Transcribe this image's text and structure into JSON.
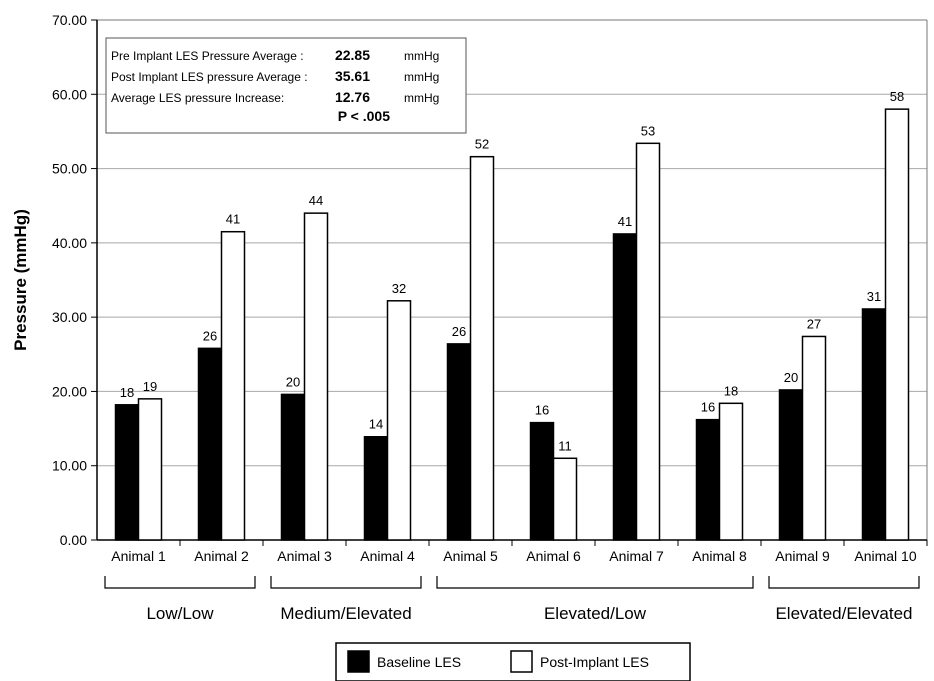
{
  "chart_data": {
    "type": "bar",
    "ylabel": "Pressure (mmHg)",
    "ylim": [
      0,
      70
    ],
    "yticks": [
      "0.00",
      "10.00",
      "20.00",
      "30.00",
      "40.00",
      "50.00",
      "60.00",
      "70.00"
    ],
    "grid": "horizontal",
    "categories": [
      "Animal 1",
      "Animal 2",
      "Animal 3",
      "Animal 4",
      "Animal 5",
      "Animal 6",
      "Animal 7",
      "Animal 8",
      "Animal 9",
      "Animal 10"
    ],
    "groups": [
      {
        "label": "Low/Low",
        "from": 0,
        "to": 1
      },
      {
        "label": "Medium/Elevated",
        "from": 2,
        "to": 3
      },
      {
        "label": "Elevated/Low",
        "from": 4,
        "to": 7
      },
      {
        "label": "Elevated/Elevated",
        "from": 8,
        "to": 9
      }
    ],
    "series": [
      {
        "name": "Baseline LES",
        "color": "#000000",
        "values": [
          18.2,
          25.8,
          19.6,
          13.9,
          26.4,
          15.8,
          41.2,
          16.2,
          20.2,
          31.1
        ],
        "labels": [
          "18",
          "26",
          "20",
          "14",
          "26",
          "16",
          "41",
          "16",
          "20",
          "31"
        ]
      },
      {
        "name": "Post-Implant LES",
        "color": "#ffffff",
        "values": [
          19.0,
          41.5,
          44.0,
          32.2,
          51.6,
          11.0,
          53.4,
          18.4,
          27.4,
          58.0
        ],
        "labels": [
          "19",
          "41",
          "44",
          "32",
          "52",
          "11",
          "53",
          "18",
          "27",
          "58"
        ]
      }
    ],
    "legend": "bottom",
    "annotation": {
      "rows": [
        {
          "label": "Pre Implant LES Pressure Average :",
          "value": "22.85",
          "unit": "mmHg"
        },
        {
          "label": "Post Implant LES pressure Average :",
          "value": "35.61",
          "unit": "mmHg"
        },
        {
          "label": "Average LES pressure Increase:",
          "value": "12.76",
          "unit": "mmHg"
        }
      ],
      "significance": "P < .005"
    }
  }
}
